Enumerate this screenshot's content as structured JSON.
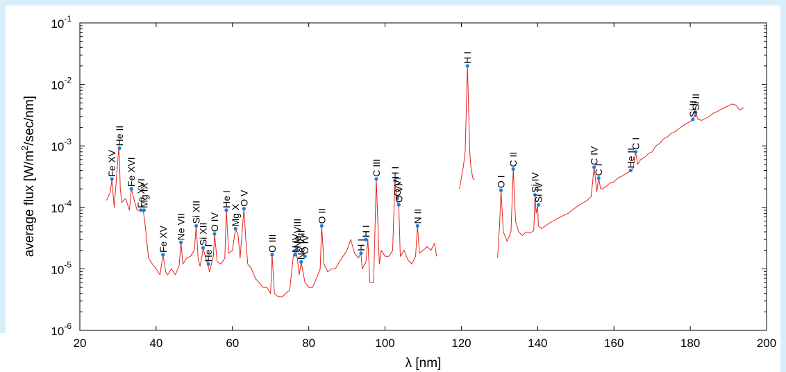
{
  "chart_data": {
    "type": "line",
    "xlabel": "λ [nm]",
    "ylabel": "average flux [W/m²/sec/nm]",
    "ylabel_parts": [
      "average flux [W/m",
      "2",
      "/sec/nm]"
    ],
    "xlim": [
      20,
      200
    ],
    "ylim": [
      1e-06,
      0.1
    ],
    "yscale": "log",
    "grid": false,
    "x_ticks": [
      20,
      40,
      60,
      80,
      100,
      120,
      140,
      160,
      180,
      200
    ],
    "x_tick_labels": [
      "20",
      "40",
      "60",
      "80",
      "100",
      "120",
      "140",
      "160",
      "180",
      "200"
    ],
    "y_ticks": [
      1e-06,
      1e-05,
      0.0001,
      0.001,
      0.01,
      0.1
    ],
    "y_tick_exponents": [
      "-6",
      "-5",
      "-4",
      "-3",
      "-2",
      "-1"
    ],
    "y_tick_base": "10",
    "series": [
      {
        "segments": [
          {
            "x": [
              27,
              28,
              28.4,
              29,
              29.5,
              30.2,
              30.4,
              30.6,
              31,
              32,
              33,
              33.5,
              34,
              35,
              36,
              36.6,
              37,
              37.5,
              38,
              39,
              40,
              41,
              41.8,
              42.5,
              43,
              44,
              45,
              46,
              46.5,
              47,
              48,
              49,
              50,
              50.5,
              51,
              51.5,
              52,
              52.3,
              53,
              53.5,
              54,
              55,
              55.3,
              56,
              57,
              58,
              58.4,
              59,
              60,
              60.8,
              61.5,
              62,
              63,
              63.5,
              64,
              65,
              66,
              67,
              68,
              69,
              70,
              70.4,
              71,
              72,
              73,
              74,
              75,
              76,
              76.5,
              77,
              77.5,
              78,
              79,
              80,
              81,
              82,
              83,
              83.4,
              84,
              85,
              86,
              87,
              88,
              89,
              90,
              91,
              92,
              93,
              93.7,
              94,
              95,
              95.5,
              96,
              97,
              97.7,
              98.5,
              99,
              100,
              101,
              102,
              102.6,
              103,
              103.2,
              103.6,
              104,
              105,
              106,
              107,
              108,
              108.5,
              109,
              110,
              111,
              112,
              113,
              113.5
            ],
            "y": [
              0.00013,
              0.00018,
              0.00029,
              0.0001,
              0.00025,
              0.00092,
              0.0006,
              0.0002,
              0.00012,
              0.00014,
              9e-05,
              0.0002,
              0.00015,
              9e-05,
              9e-05,
              9e-05,
              6e-05,
              3e-05,
              1.5e-05,
              1.2e-05,
              1e-05,
              8e-06,
              1.7e-05,
              9e-06,
              8e-06,
              1e-05,
              8e-06,
              1.1e-05,
              2.7e-05,
              1.2e-05,
              1.5e-05,
              1.6e-05,
              2e-05,
              5e-05,
              1.5e-05,
              1.1e-05,
              1.6e-05,
              2.2e-05,
              1.5e-05,
              1.2e-05,
              9e-06,
              1.6e-05,
              3.7e-05,
              1.3e-05,
              1.2e-05,
              1.5e-05,
              9e-05,
              1.8e-05,
              2e-05,
              4.5e-05,
              3.5e-05,
              1.5e-05,
              9.5e-05,
              3e-05,
              1.2e-05,
              1e-05,
              7e-06,
              6e-06,
              5e-06,
              5e-06,
              4e-06,
              1.7e-05,
              4e-06,
              3.5e-06,
              3.5e-06,
              4e-06,
              4.5e-06,
              1.7e-05,
              2e-05,
              1.5e-05,
              8e-06,
              1.3e-05,
              6e-06,
              5e-06,
              5e-06,
              7e-06,
              1e-05,
              5e-05,
              1.2e-05,
              9e-06,
              1e-05,
              1e-05,
              1.3e-05,
              1.6e-05,
              2e-05,
              3e-05,
              1.8e-05,
              1.5e-05,
              1.8e-05,
              1e-05,
              1.3e-05,
              3e-05,
              6e-06,
              6e-06,
              0.00029,
              1.2e-05,
              2e-05,
              1.6e-05,
              1.6e-05,
              2e-05,
              0.00027,
              0.00014,
              0.00012,
              0.00011,
              1.6e-05,
              2e-05,
              1.4e-05,
              1.2e-05,
              1.6e-05,
              5e-05,
              1.8e-05,
              2e-05,
              2.3e-05,
              2e-05,
              2.6e-05,
              1.6e-05
            ]
          },
          {
            "x": [
              119.5,
              120,
              120.5,
              121,
              121.3,
              121.6,
              121.9,
              122.2,
              122.5,
              123,
              123.5
            ],
            "y": [
              0.0002,
              0.0003,
              0.00045,
              0.0008,
              0.004,
              0.02,
              0.004,
              0.0008,
              0.00045,
              0.0003,
              0.00028
            ]
          },
          {
            "x": [
              129.5,
              130,
              130.4,
              131,
              132,
              133,
              133.6,
              134.2,
              135,
              136,
              137,
              138,
              139,
              139.3,
              139.6,
              140,
              140.2,
              141,
              142,
              143,
              144,
              145,
              146,
              147,
              148,
              149,
              150,
              151,
              152,
              153,
              154,
              154.8,
              155.5,
              156,
              156.5,
              157,
              158,
              159,
              160,
              161,
              162,
              163,
              164,
              164.4,
              165,
              165.7,
              166.2,
              167,
              168,
              169,
              170,
              171,
              172,
              173,
              174,
              175,
              176,
              177,
              178,
              179,
              180,
              180.7,
              181.4,
              182,
              183,
              184,
              185,
              186,
              187,
              188,
              189,
              190,
              191,
              192,
              193,
              194
            ],
            "y": [
              1.5e-05,
              5e-05,
              0.00019,
              4e-05,
              2.8e-05,
              4e-05,
              0.00042,
              6e-05,
              4e-05,
              3.5e-05,
              4e-05,
              3.8e-05,
              4.2e-05,
              0.00016,
              8e-05,
              0.00011,
              5e-05,
              4.5e-05,
              5e-05,
              5.5e-05,
              6e-05,
              6.5e-05,
              7e-05,
              7.5e-05,
              8e-05,
              9e-05,
              0.0001,
              0.00011,
              0.00012,
              0.00013,
              0.00015,
              0.00045,
              0.00018,
              0.0003,
              0.0002,
              0.0002,
              0.00022,
              0.00025,
              0.00026,
              0.0003,
              0.00032,
              0.00035,
              0.00038,
              0.0004,
              0.00042,
              0.0008,
              0.0005,
              0.0006,
              0.00065,
              0.00075,
              0.0008,
              0.001,
              0.0011,
              0.0013,
              0.0014,
              0.0016,
              0.0017,
              0.0019,
              0.0021,
              0.0023,
              0.0025,
              0.0027,
              0.0035,
              0.0027,
              0.0026,
              0.0028,
              0.003,
              0.0034,
              0.0036,
              0.0039,
              0.0042,
              0.0045,
              0.0048,
              0.0046,
              0.0038,
              0.0042
            ]
          }
        ]
      }
    ],
    "annotations": [
      {
        "label": "Fe XV",
        "x": 28.4,
        "y": 0.00029
      },
      {
        "label": "He II",
        "x": 30.4,
        "y": 0.00092
      },
      {
        "label": "Fe XVI",
        "x": 33.5,
        "y": 0.0002
      },
      {
        "label": "Fe XVI",
        "x": 36.0,
        "y": 9e-05
      },
      {
        "label": "Mg IX",
        "x": 36.8,
        "y": 9e-05
      },
      {
        "label": "Fe XV",
        "x": 41.8,
        "y": 1.7e-05
      },
      {
        "label": "Ne VII",
        "x": 46.5,
        "y": 2.7e-05
      },
      {
        "label": "Si XII",
        "x": 50.5,
        "y": 5e-05
      },
      {
        "label": "Si XII",
        "x": 52.3,
        "y": 2.2e-05
      },
      {
        "label": "He I",
        "x": 53.7,
        "y": 1.2e-05
      },
      {
        "label": "O IV",
        "x": 55.3,
        "y": 3.7e-05
      },
      {
        "label": "He I",
        "x": 58.4,
        "y": 9e-05
      },
      {
        "label": "Mg X",
        "x": 60.8,
        "y": 4.5e-05
      },
      {
        "label": "O V",
        "x": 63.0,
        "y": 9.5e-05
      },
      {
        "label": "O III",
        "x": 70.4,
        "y": 1.7e-05
      },
      {
        "label": "N IV",
        "x": 76.5,
        "y": 1.7e-05
      },
      {
        "label": "Ne VIII",
        "x": 77.0,
        "y": 2e-05
      },
      {
        "label": "Ne VIII",
        "x": 78.0,
        "y": 1.3e-05
      },
      {
        "label": "O IV",
        "x": 79.0,
        "y": 1.6e-05
      },
      {
        "label": "O II",
        "x": 83.4,
        "y": 5e-05
      },
      {
        "label": "H I",
        "x": 93.7,
        "y": 1.8e-05
      },
      {
        "label": "H I",
        "x": 95.0,
        "y": 3e-05
      },
      {
        "label": "C III",
        "x": 97.7,
        "y": 0.00029
      },
      {
        "label": "H I",
        "x": 102.6,
        "y": 0.00027
      },
      {
        "label": "O VI",
        "x": 103.2,
        "y": 0.00014
      },
      {
        "label": "O VI",
        "x": 103.6,
        "y": 0.00011
      },
      {
        "label": "N II",
        "x": 108.5,
        "y": 5e-05
      },
      {
        "label": "H I",
        "x": 121.6,
        "y": 0.02
      },
      {
        "label": "O I",
        "x": 130.4,
        "y": 0.00019
      },
      {
        "label": "C II",
        "x": 133.6,
        "y": 0.00042
      },
      {
        "label": "Si IV",
        "x": 139.3,
        "y": 0.00016
      },
      {
        "label": "Si IV",
        "x": 140.2,
        "y": 0.00011
      },
      {
        "label": "C IV",
        "x": 154.8,
        "y": 0.00045
      },
      {
        "label": "C I",
        "x": 156.0,
        "y": 0.0003
      },
      {
        "label": "He II",
        "x": 164.4,
        "y": 0.0004
      },
      {
        "label": "C I",
        "x": 165.7,
        "y": 0.0008
      },
      {
        "label": "Si II",
        "x": 180.7,
        "y": 0.0027
      },
      {
        "label": "Si II",
        "x": 181.4,
        "y": 0.0035
      }
    ],
    "colors": {
      "line": "#e8201c",
      "marker": "#1a7fe0",
      "axis": "#000000",
      "frame_band": "#d8eefa"
    }
  }
}
